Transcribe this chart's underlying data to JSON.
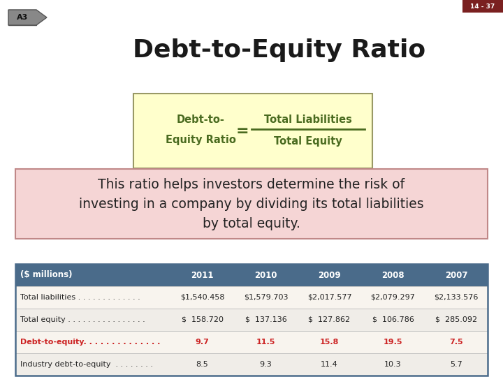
{
  "slide_number": "14 - 37",
  "slide_bg": "#ffffff",
  "title": "Debt-to-Equity Ratio",
  "title_color": "#1a1a1a",
  "arrow_label": "A3",
  "arrow_bg": "#888888",
  "formula_box_bg": "#ffffcc",
  "formula_box_border": "#999966",
  "formula_left_top": "Debt-to-",
  "formula_left_bottom": "Equity Ratio",
  "formula_numerator": "Total Liabilities",
  "formula_denominator": "Total Equity",
  "formula_text_color": "#4a6b20",
  "description_box_bg": "#f5d5d5",
  "description_box_border": "#c08888",
  "description_text": "This ratio helps investors determine the risk of\ninvesting in a company by dividing its total liabilities\nby total equity.",
  "description_text_color": "#222222",
  "table_header_bg": "#4a6b8a",
  "table_header_text_color": "#ffffff",
  "table_border_color": "#4a6b8a",
  "col_headers": [
    "($ millions)",
    "2011",
    "2010",
    "2009",
    "2008",
    "2007"
  ],
  "rows": [
    [
      "Total liabilities . . . . . . . . . . . . .",
      "$1,540.458",
      "$1,579.703",
      "$2,017.577",
      "$2,079.297",
      "$2,133.576"
    ],
    [
      "Total equity . . . . . . . . . . . . . . . .",
      "$  158.720",
      "$  137.136",
      "$  127.862",
      "$  106.786",
      "$  285.092"
    ],
    [
      "Debt-to-equity. . . . . . . . . . . . . .",
      "9.7",
      "11.5",
      "15.8",
      "19.5",
      "7.5"
    ],
    [
      "Industry debt-to-equity  . . . . . . . .",
      "8.5",
      "9.3",
      "11.4",
      "10.3",
      "5.7"
    ]
  ],
  "highlight_row": 2,
  "highlight_color": "#cc2222",
  "slide_number_bg": "#7a2020",
  "slide_number_color": "#ffffff",
  "table_row_bgs": [
    "#f0ede8",
    "#f0ede8",
    "#f0ede8",
    "#f0ede8"
  ]
}
